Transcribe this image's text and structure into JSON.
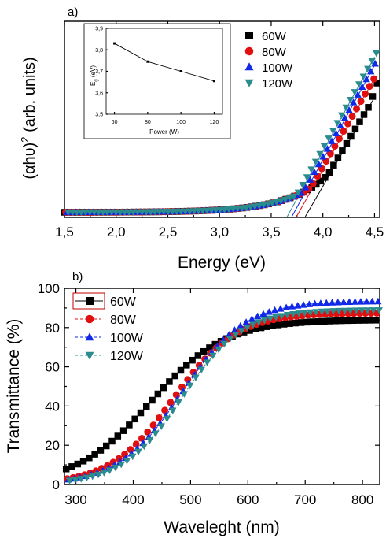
{
  "chart_data": [
    {
      "id": "a",
      "panel_label": "a)",
      "type": "scatter",
      "xlabel": "Energy (eV)",
      "ylabel": "(αhυ)² (arb. units)",
      "ylabel_parts": {
        "main": "(αhυ)",
        "sup": "2",
        "tail": " (arb. units)"
      },
      "xlim": [
        1.5,
        4.55
      ],
      "ylim": [
        0,
        1
      ],
      "xticks": [
        1.5,
        2.0,
        2.5,
        3.0,
        3.5,
        4.0,
        4.5
      ],
      "xtick_labels": [
        "1,5",
        "2,0",
        "2,5",
        "3,0",
        "3,5",
        "4,0",
        "4,5"
      ],
      "legend_position": "top-right",
      "series": [
        {
          "name": "60W",
          "color": "#000000",
          "marker": "square",
          "Eg": 3.83,
          "k": 0.28
        },
        {
          "name": "80W",
          "color": "#e01010",
          "marker": "circle",
          "Eg": 3.745,
          "k": 0.29
        },
        {
          "name": "100W",
          "color": "#1028e8",
          "marker": "triangle-up",
          "Eg": 3.7,
          "k": 0.3
        },
        {
          "name": "120W",
          "color": "#2a8c8c",
          "marker": "triangle-down",
          "Eg": 3.655,
          "k": 0.3
        }
      ],
      "inset": {
        "type": "line",
        "xlabel": "Power (W)",
        "ylabel": "E",
        "ylabel_sub": "g",
        "ylabel_unit": " (eV)",
        "x": [
          60,
          80,
          100,
          120
        ],
        "y": [
          3.83,
          3.745,
          3.7,
          3.655
        ],
        "xlim": [
          55,
          125
        ],
        "ylim": [
          3.5,
          3.9
        ],
        "xticks": [
          60,
          80,
          100,
          120
        ],
        "yticks": [
          3.5,
          3.6,
          3.7,
          3.8,
          3.9
        ],
        "ytick_labels": [
          "3,5",
          "3,6",
          "3,7",
          "3,8",
          "3,9"
        ]
      }
    },
    {
      "id": "b",
      "panel_label": "b)",
      "type": "scatter",
      "xlabel": "Waveleght (nm)",
      "ylabel": "Transmittance (%)",
      "xlim": [
        280,
        830
      ],
      "ylim": [
        0,
        100
      ],
      "xticks": [
        300,
        400,
        500,
        600,
        700,
        800
      ],
      "yticks": [
        0,
        20,
        40,
        60,
        80,
        100
      ],
      "legend_position": "top-left",
      "series": [
        {
          "name": "60W",
          "color": "#000000",
          "marker": "square",
          "plateau": 84,
          "center": 430,
          "width": 65,
          "dashed": false
        },
        {
          "name": "80W",
          "color": "#e01010",
          "marker": "circle",
          "plateau": 87.5,
          "center": 470,
          "width": 55,
          "dashed": true
        },
        {
          "name": "100W",
          "color": "#1028e8",
          "marker": "triangle-up",
          "plateau": 93.5,
          "center": 485,
          "width": 55,
          "dashed": true
        },
        {
          "name": "120W",
          "color": "#2a8c8c",
          "marker": "triangle-down",
          "plateau": 89,
          "center": 485,
          "width": 52,
          "dashed": true
        }
      ]
    }
  ]
}
